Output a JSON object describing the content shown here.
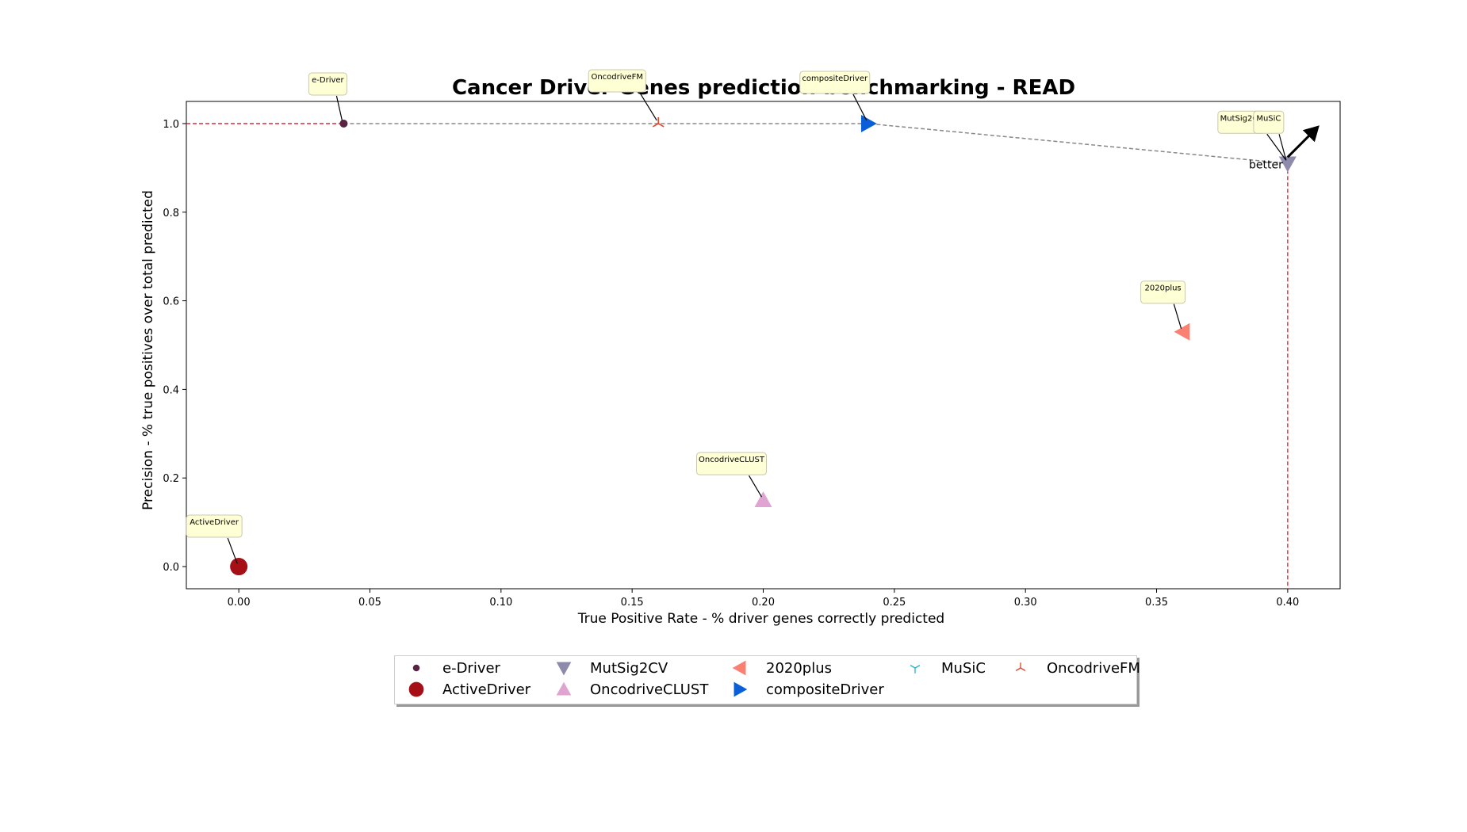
{
  "chart_data": {
    "type": "scatter",
    "title": "Cancer Driver Genes prediction benchmarking - READ",
    "xlabel": "True Positive Rate - % driver genes correctly predicted",
    "ylabel": "Precision - % true positives over total predicted",
    "xlim": [
      -0.02,
      0.42
    ],
    "ylim": [
      -0.05,
      1.05
    ],
    "xticks": [
      "0.00",
      "0.05",
      "0.10",
      "0.15",
      "0.20",
      "0.25",
      "0.30",
      "0.35",
      "0.40"
    ],
    "yticks": [
      "0.0",
      "0.2",
      "0.4",
      "0.6",
      "0.8",
      "1.0"
    ],
    "better_label": "better",
    "legend_placement": "bottom-center",
    "points": [
      {
        "name": "e-Driver",
        "x": 0.04,
        "y": 1.0,
        "marker": "circle-small",
        "color": "#5a2343"
      },
      {
        "name": "ActiveDriver",
        "x": 0.0,
        "y": 0.0,
        "marker": "circle-large",
        "color": "#a50f15"
      },
      {
        "name": "MutSig2CV",
        "x": 0.4,
        "y": 0.91,
        "marker": "triangle-down",
        "color": "#8e8aab"
      },
      {
        "name": "OncodriveCLUST",
        "x": 0.2,
        "y": 0.15,
        "marker": "triangle-up",
        "color": "#e0a4d2"
      },
      {
        "name": "2020plus",
        "x": 0.36,
        "y": 0.53,
        "marker": "triangle-left",
        "color": "#fa8072"
      },
      {
        "name": "compositeDriver",
        "x": 0.24,
        "y": 1.0,
        "marker": "triangle-right",
        "color": "#0a5fd8"
      },
      {
        "name": "MuSiC",
        "x": 0.4,
        "y": 0.91,
        "marker": "tri-down",
        "color": "#2bb3c8"
      },
      {
        "name": "OncodriveFM",
        "x": 0.16,
        "y": 1.0,
        "marker": "tri-up",
        "color": "#e8452c"
      }
    ],
    "pareto_front": [
      [
        0.04,
        1.0
      ],
      [
        0.16,
        1.0
      ],
      [
        0.24,
        1.0
      ],
      [
        0.4,
        0.91
      ]
    ],
    "legend": [
      {
        "label": "e-Driver",
        "marker": "circle-small",
        "color": "#5a2343"
      },
      {
        "label": "MutSig2CV",
        "marker": "triangle-down",
        "color": "#8e8aab"
      },
      {
        "label": "2020plus",
        "marker": "triangle-left",
        "color": "#fa8072"
      },
      {
        "label": "MuSiC",
        "marker": "tri-down",
        "color": "#2bb3c8"
      },
      {
        "label": "OncodriveFM",
        "marker": "tri-up",
        "color": "#e8452c"
      },
      {
        "label": "ActiveDriver",
        "marker": "circle-large",
        "color": "#a50f15"
      },
      {
        "label": "OncodriveCLUST",
        "marker": "triangle-up",
        "color": "#e0a4d2"
      },
      {
        "label": "compositeDriver",
        "marker": "triangle-right",
        "color": "#0a5fd8"
      }
    ]
  }
}
